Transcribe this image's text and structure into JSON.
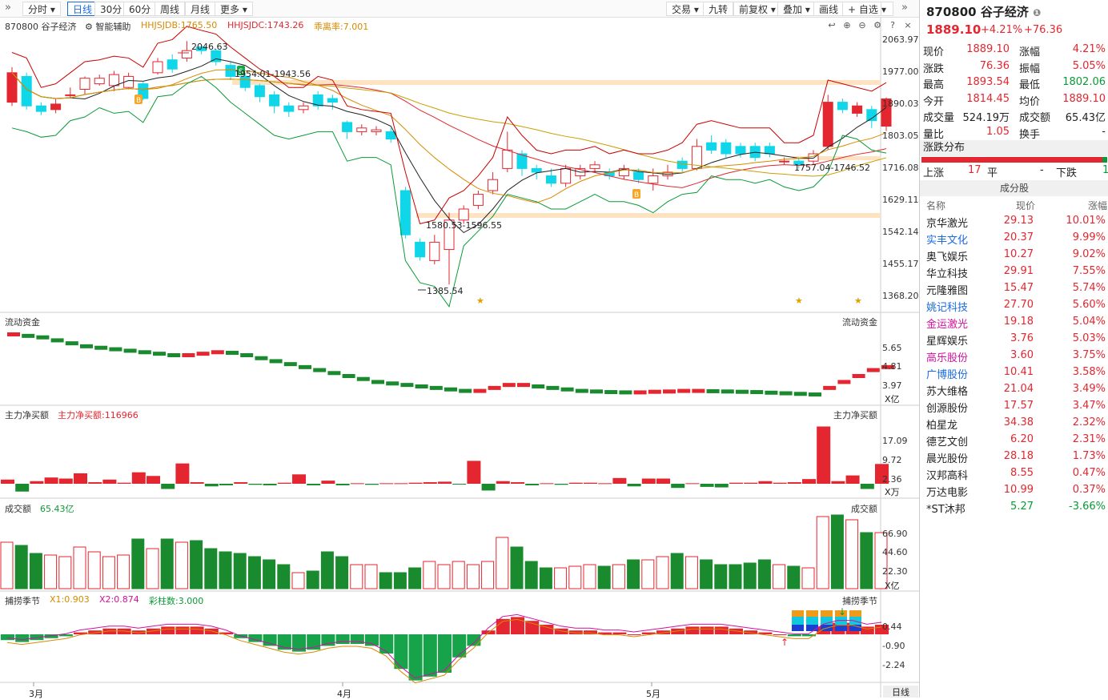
{
  "toolbar": {
    "collapse": "»",
    "tabs": [
      "分时",
      "日线",
      "30分",
      "60分",
      "周线",
      "月线",
      "更多"
    ],
    "active": "日线",
    "right": [
      "交易",
      "九转",
      "前复权",
      "叠加",
      "画线",
      "+ 自选"
    ],
    "expand": "»"
  },
  "main": {
    "code_name": "870800 谷子经济",
    "assist": "智能辅助",
    "ind1": "HHJSJDB:1765.50",
    "ind2": "HHJSJDC:1743.26",
    "ind3": "乖离率:7.001",
    "y_labels": [
      "2063.97",
      "1977.00",
      "1890.03",
      "1803.05",
      "1716.08",
      "1629.11",
      "1542.14",
      "1455.17",
      "1368.20"
    ],
    "annotations": {
      "high": "2046.63",
      "s_zone": "1954.01-1943.56",
      "low_zone": "1580.53-1596.55",
      "low": "1385.54",
      "cur_zone": "1757.04-1746.52"
    },
    "b_badge": "B",
    "s_badge": "S"
  },
  "flow": {
    "title": "流动资金",
    "right": "流动资金",
    "y_labels": [
      "5.65",
      "4.81",
      "3.97"
    ],
    "unit": "X亿"
  },
  "net": {
    "title": "主力净买额",
    "value": "主力净买额:116966",
    "right": "主力净买额",
    "y_labels": [
      "17.09",
      "9.72",
      "2.36"
    ],
    "unit": "X万"
  },
  "vol": {
    "title": "成交额",
    "value": "65.43亿",
    "right": "成交额",
    "y_labels": [
      "66.90",
      "44.60",
      "22.30"
    ],
    "unit": "X亿"
  },
  "season": {
    "title": "捕捞季节",
    "x1": "X1:0.903",
    "x2": "X2:0.874",
    "bar": "彩柱数:3.000",
    "right": "捕捞季节",
    "y_labels": [
      "0.44",
      "-0.90",
      "-2.24"
    ]
  },
  "xaxis": {
    "labels": [
      "3月",
      "4月",
      "5月"
    ],
    "corner": "日线"
  },
  "side": {
    "code": "870800",
    "name": "谷子经济",
    "price": "1889.10",
    "chg_pct": "+4.21%",
    "chg": "+76.36",
    "quote": [
      [
        "现价",
        "1889.10",
        "涨幅",
        "4.21%"
      ],
      [
        "涨跌",
        "76.36",
        "振幅",
        "5.05%"
      ],
      [
        "最高",
        "1893.54",
        "最低",
        "1802.06"
      ],
      [
        "今开",
        "1814.45",
        "均价",
        "1889.10"
      ],
      [
        "成交量",
        "524.19万",
        "成交额",
        "65.43亿"
      ],
      [
        "量比",
        "1.05",
        "换手",
        "-"
      ]
    ],
    "dist_title": "涨跌分布",
    "up_label": "上涨",
    "up": "17",
    "flat_label": "平",
    "flat": "-",
    "down_label": "下跌",
    "down": "1",
    "cons_title": "成分股",
    "cols": [
      "名称",
      "现价",
      "涨幅"
    ],
    "stocks": [
      [
        "京华激光",
        "29.13",
        "10.01%",
        "n"
      ],
      [
        "实丰文化",
        "20.37",
        "9.99%",
        "b"
      ],
      [
        "奥飞娱乐",
        "10.27",
        "9.02%",
        "n"
      ],
      [
        "华立科技",
        "29.91",
        "7.55%",
        "n"
      ],
      [
        "元隆雅图",
        "15.47",
        "5.74%",
        "n"
      ],
      [
        "姚记科技",
        "27.70",
        "5.60%",
        "b"
      ],
      [
        "金运激光",
        "19.18",
        "5.04%",
        "m"
      ],
      [
        "星辉娱乐",
        "3.76",
        "5.03%",
        "n"
      ],
      [
        "高乐股份",
        "3.60",
        "3.75%",
        "m"
      ],
      [
        "广博股份",
        "10.41",
        "3.58%",
        "b"
      ],
      [
        "苏大维格",
        "21.04",
        "3.49%",
        "n"
      ],
      [
        "创源股份",
        "17.57",
        "3.47%",
        "n"
      ],
      [
        "柏星龙",
        "34.38",
        "2.32%",
        "n"
      ],
      [
        "德艺文创",
        "6.20",
        "2.31%",
        "n"
      ],
      [
        "晨光股份",
        "28.18",
        "1.73%",
        "n"
      ],
      [
        "汉邦高科",
        "8.55",
        "0.47%",
        "n"
      ],
      [
        "万达电影",
        "10.99",
        "0.37%",
        "n"
      ],
      [
        "*ST沐邦",
        "5.27",
        "-3.66%",
        "n"
      ]
    ]
  },
  "colors": {
    "up": "#e3262f",
    "down": "#0fd6e8",
    "vol_down": "#1a8a2e",
    "accent": "#1b6ae0"
  }
}
